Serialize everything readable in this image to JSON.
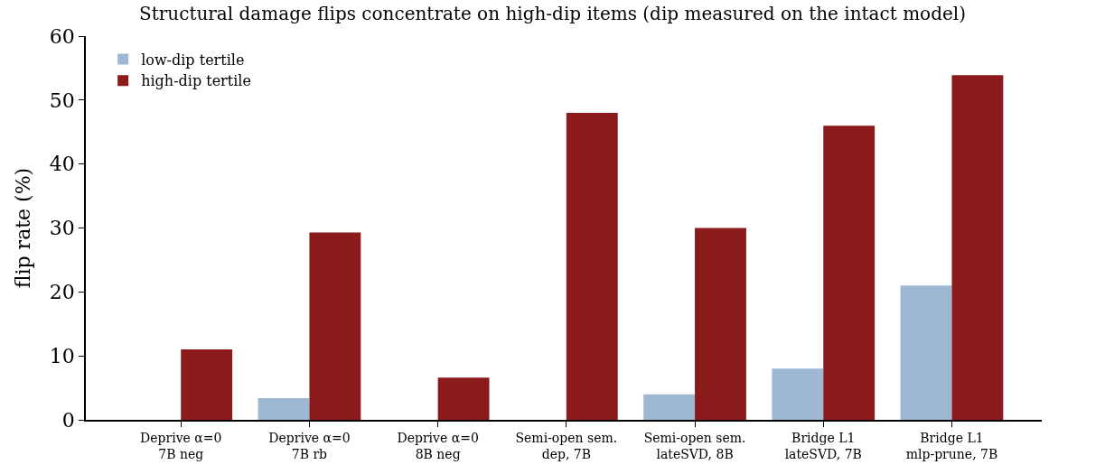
{
  "chart_data": {
    "type": "bar",
    "title": "Structural damage flips concentrate on high-dip items (dip measured on the intact model)",
    "ylabel": "flip rate (%)",
    "categories": [
      "Deprive α=0\n7B neg",
      "Deprive α=0\n7B rb",
      "Deprive α=0\n8B neg",
      "Semi-open sem.\ndep, 7B",
      "Semi-open sem.\nlateSVD, 8B",
      "Bridge L1\nlateSVD, 7B",
      "Bridge L1\nmlp-prune, 7B"
    ],
    "series": [
      {
        "name": "low-dip tertile",
        "color": "#9eb8d3",
        "values": [
          0,
          3.4,
          0,
          0,
          4,
          8,
          21
        ]
      },
      {
        "name": "high-dip tertile",
        "color": "#8b1a1a",
        "values": [
          11,
          29.3,
          6.6,
          48,
          30,
          46,
          53.9
        ]
      }
    ],
    "ylim": [
      0,
      60
    ],
    "yticks": [
      0,
      10,
      20,
      30,
      40,
      50,
      60
    ],
    "legend": "top left"
  }
}
